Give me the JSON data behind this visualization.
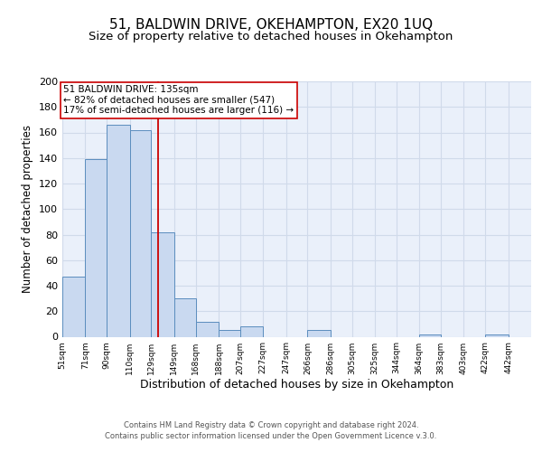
{
  "title1": "51, BALDWIN DRIVE, OKEHAMPTON, EX20 1UQ",
  "title2": "Size of property relative to detached houses in Okehampton",
  "xlabel": "Distribution of detached houses by size in Okehampton",
  "ylabel": "Number of detached properties",
  "bar_left_edges": [
    51,
    71,
    90,
    110,
    129,
    149,
    168,
    188,
    207,
    227,
    247,
    266,
    286,
    305,
    325,
    344,
    364,
    383,
    403,
    422
  ],
  "bar_widths": [
    20,
    19,
    20,
    19,
    20,
    19,
    20,
    19,
    20,
    20,
    19,
    20,
    19,
    20,
    19,
    20,
    19,
    20,
    19,
    20
  ],
  "bar_heights": [
    47,
    139,
    166,
    162,
    82,
    30,
    12,
    5,
    8,
    0,
    0,
    5,
    0,
    0,
    0,
    0,
    2,
    0,
    0,
    2
  ],
  "tick_labels": [
    "51sqm",
    "71sqm",
    "90sqm",
    "110sqm",
    "129sqm",
    "149sqm",
    "168sqm",
    "188sqm",
    "207sqm",
    "227sqm",
    "247sqm",
    "266sqm",
    "286sqm",
    "305sqm",
    "325sqm",
    "344sqm",
    "364sqm",
    "383sqm",
    "403sqm",
    "422sqm",
    "442sqm"
  ],
  "tick_positions": [
    51,
    71,
    90,
    110,
    129,
    149,
    168,
    188,
    207,
    227,
    247,
    266,
    286,
    305,
    325,
    344,
    364,
    383,
    403,
    422,
    442
  ],
  "bar_color": "#c9d9f0",
  "bar_edge_color": "#5b8dbe",
  "red_line_x": 135,
  "annotation_line1": "51 BALDWIN DRIVE: 135sqm",
  "annotation_line2": "← 82% of detached houses are smaller (547)",
  "annotation_line3": "17% of semi-detached houses are larger (116) →",
  "ylim": [
    0,
    200
  ],
  "yticks": [
    0,
    20,
    40,
    60,
    80,
    100,
    120,
    140,
    160,
    180,
    200
  ],
  "xlim": [
    51,
    462
  ],
  "background_color": "#eaf0fa",
  "grid_color": "#d0daea",
  "footer_line1": "Contains HM Land Registry data © Crown copyright and database right 2024.",
  "footer_line2": "Contains public sector information licensed under the Open Government Licence v.3.0.",
  "title1_fontsize": 11,
  "title2_fontsize": 9.5,
  "xlabel_fontsize": 9,
  "ylabel_fontsize": 8.5
}
